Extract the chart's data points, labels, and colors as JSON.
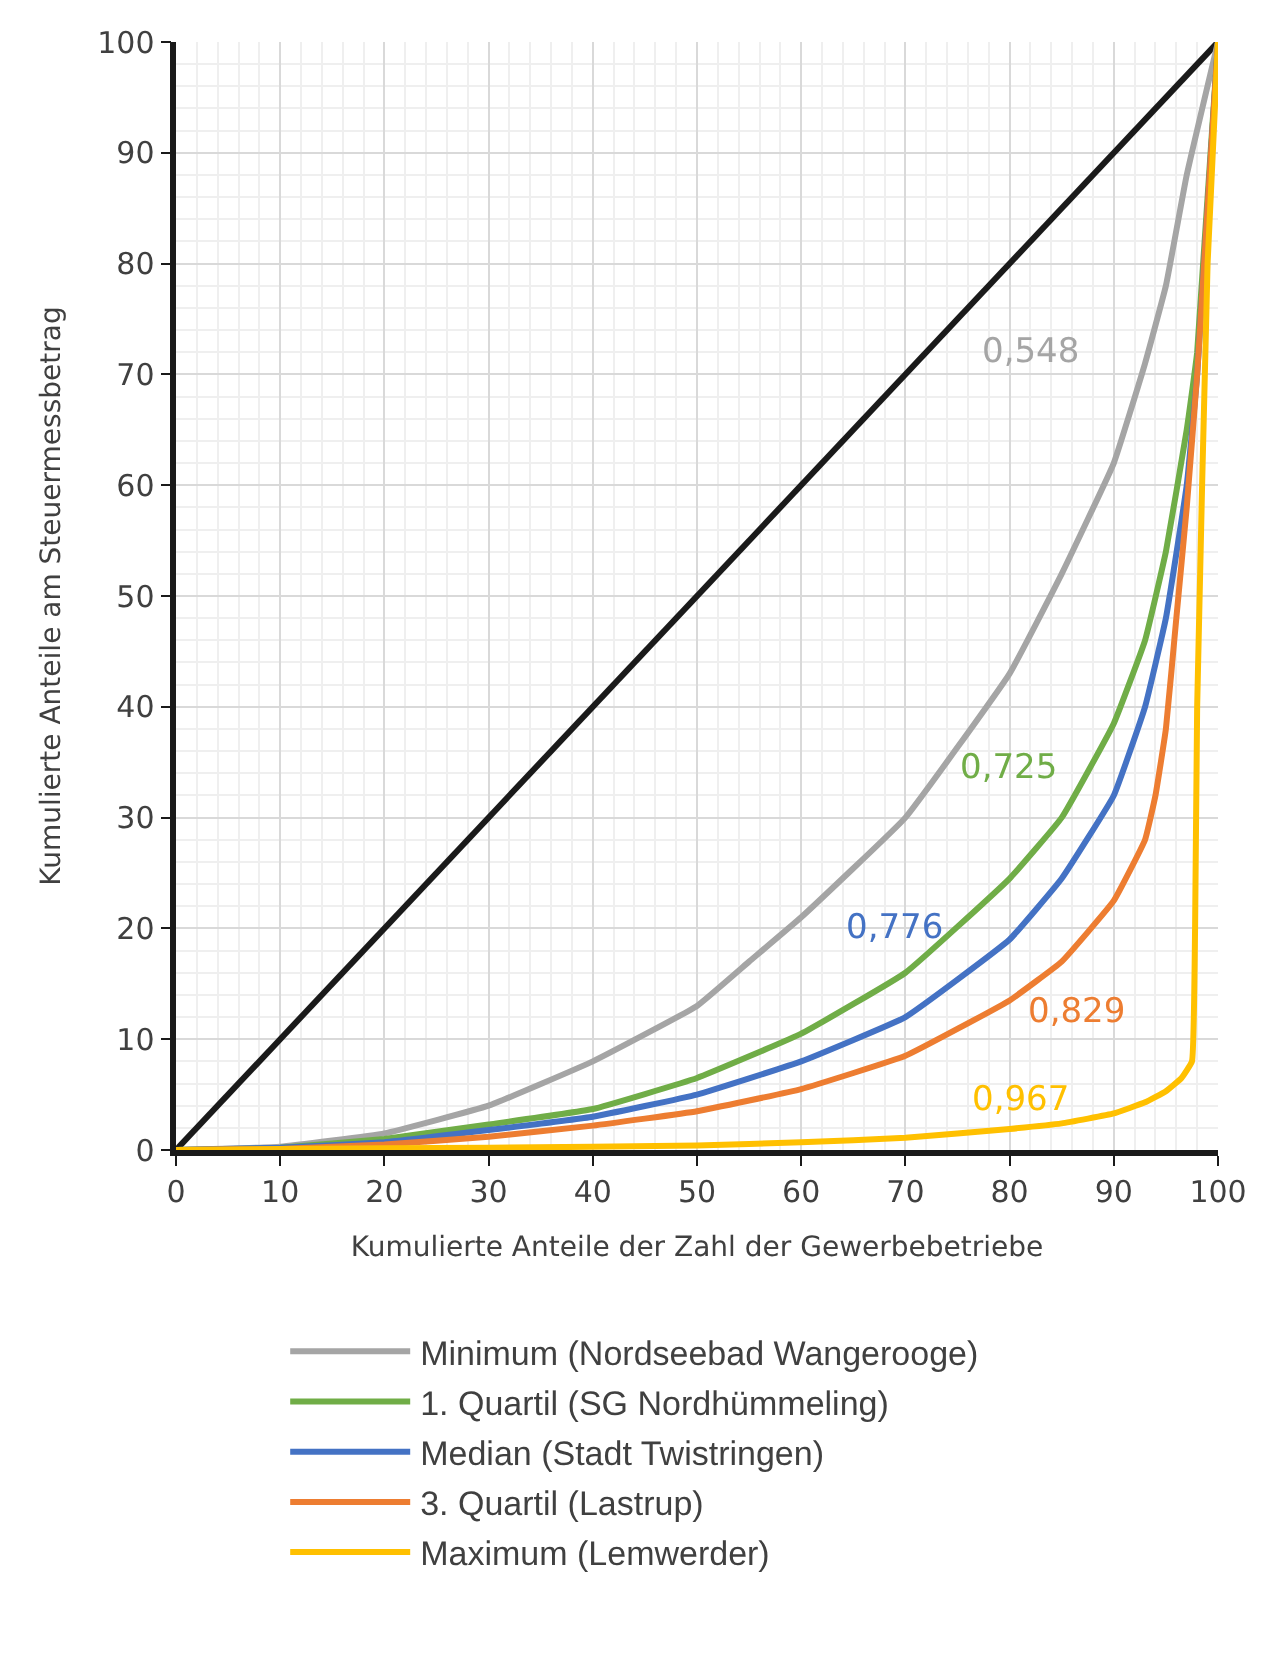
{
  "chart_data": {
    "type": "line",
    "xlabel": "Kumulierte Anteile der Zahl der Gewerbebetriebe",
    "ylabel": "Kumulierte Anteile am Steuermessbetrag",
    "xlim": [
      0,
      100
    ],
    "ylim": [
      0,
      100
    ],
    "xticks": [
      0,
      10,
      20,
      30,
      40,
      50,
      60,
      70,
      80,
      90,
      100
    ],
    "yticks": [
      0,
      10,
      20,
      30,
      40,
      50,
      60,
      70,
      80,
      90,
      100
    ],
    "grid": true,
    "legend": "bottom",
    "marker": "none",
    "line_style": "solid",
    "series": [
      {
        "color": "#1a1a1a",
        "x": [
          0,
          100
        ],
        "values": [
          0,
          100
        ]
      },
      {
        "name": "Minimum (Nordseebad Wangerooge)",
        "color": "#a5a5a5",
        "x": [
          0,
          10,
          20,
          30,
          40,
          50,
          55,
          60,
          70,
          80,
          85,
          90,
          93,
          95,
          97,
          100
        ],
        "values": [
          0,
          0.3,
          1.5,
          4,
          8,
          13,
          17,
          21,
          30,
          43,
          52,
          62,
          71,
          78,
          88,
          100
        ]
      },
      {
        "name": "1. Quartil (SG Nordhümmeling)",
        "color": "#70ad47",
        "x": [
          0,
          10,
          20,
          30,
          40,
          50,
          60,
          70,
          80,
          85,
          90,
          93,
          95,
          97,
          98,
          100
        ],
        "values": [
          0,
          0.2,
          1,
          2.3,
          3.7,
          6.5,
          10.5,
          16,
          24.5,
          30,
          38.5,
          46,
          54,
          65,
          72,
          100
        ]
      },
      {
        "name": "Median (Stadt Twistringen)",
        "color": "#4472c4",
        "x": [
          0,
          10,
          20,
          30,
          40,
          50,
          60,
          70,
          80,
          85,
          90,
          93,
          95,
          97,
          98,
          100
        ],
        "values": [
          0,
          0.2,
          0.7,
          1.8,
          3,
          5,
          8,
          12,
          19,
          24.5,
          32,
          40,
          48,
          60,
          70,
          100
        ]
      },
      {
        "name": "3. Quartil (Lastrup)",
        "color": "#ed7d31",
        "x": [
          0,
          10,
          20,
          30,
          40,
          50,
          60,
          70,
          80,
          85,
          90,
          93,
          94,
          95,
          96,
          97,
          98,
          99,
          100
        ],
        "values": [
          0,
          0.1,
          0.5,
          1.2,
          2.2,
          3.5,
          5.5,
          8.5,
          13.5,
          17,
          22.5,
          28,
          32,
          38,
          48,
          58,
          70,
          85,
          100
        ]
      },
      {
        "name": "Maximum (Lemwerder)",
        "color": "#ffc000",
        "x": [
          0,
          10,
          30,
          50,
          60,
          70,
          80,
          85,
          90,
          93,
          95,
          96.5,
          97.5,
          97.8,
          98,
          99,
          100
        ],
        "values": [
          0,
          0.1,
          0.2,
          0.4,
          0.7,
          1.1,
          1.9,
          2.4,
          3.3,
          4.3,
          5.3,
          6.5,
          8,
          20,
          40,
          80,
          100
        ]
      }
    ],
    "annotations": [
      "0,548",
      "0,725",
      "0,776",
      "0,829",
      "0,967"
    ]
  }
}
